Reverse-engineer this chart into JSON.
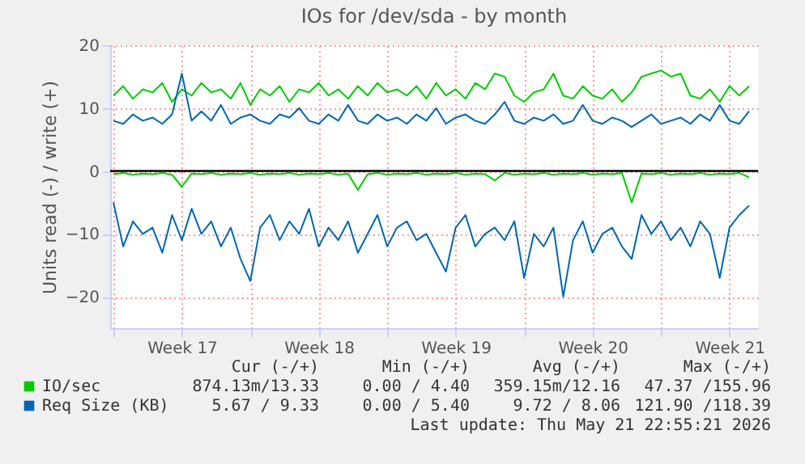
{
  "chart_data": {
    "type": "line",
    "title": "IOs for /dev/sda - by month",
    "ylabel": "Units read (-) / write (+)",
    "x": [
      "2026-04-20T00:00",
      "2026-04-20T12:00",
      "2026-04-21T00:00",
      "2026-04-21T12:00",
      "2026-04-22T00:00",
      "2026-04-22T12:00",
      "2026-04-23T00:00",
      "2026-04-23T12:00",
      "2026-04-24T00:00",
      "2026-04-24T12:00",
      "2026-04-25T00:00",
      "2026-04-25T12:00",
      "2026-04-26T00:00",
      "2026-04-26T12:00",
      "2026-04-27T00:00",
      "2026-04-27T12:00",
      "2026-04-28T00:00",
      "2026-04-28T12:00",
      "2026-04-29T00:00",
      "2026-04-29T12:00",
      "2026-04-30T00:00",
      "2026-04-30T12:00",
      "2026-05-01T00:00",
      "2026-05-01T12:00",
      "2026-05-02T00:00",
      "2026-05-02T12:00",
      "2026-05-03T00:00",
      "2026-05-03T12:00",
      "2026-05-04T00:00",
      "2026-05-04T12:00",
      "2026-05-05T00:00",
      "2026-05-05T12:00",
      "2026-05-06T00:00",
      "2026-05-06T12:00",
      "2026-05-07T00:00",
      "2026-05-07T12:00",
      "2026-05-08T00:00",
      "2026-05-08T12:00",
      "2026-05-09T00:00",
      "2026-05-09T12:00",
      "2026-05-10T00:00",
      "2026-05-10T12:00",
      "2026-05-11T00:00",
      "2026-05-11T12:00",
      "2026-05-12T00:00",
      "2026-05-12T12:00",
      "2026-05-13T00:00",
      "2026-05-13T12:00",
      "2026-05-14T00:00",
      "2026-05-14T12:00",
      "2026-05-15T00:00",
      "2026-05-15T12:00",
      "2026-05-16T00:00",
      "2026-05-16T12:00",
      "2026-05-17T00:00",
      "2026-05-17T12:00",
      "2026-05-18T00:00",
      "2026-05-18T12:00",
      "2026-05-19T00:00",
      "2026-05-19T12:00",
      "2026-05-20T00:00",
      "2026-05-20T12:00",
      "2026-05-21T00:00",
      "2026-05-21T12:00",
      "2026-05-22T00:00",
      "2026-05-22T12:00"
    ],
    "series": [
      {
        "name": "IO/sec",
        "color": "#00cc00",
        "values": [
          12,
          13.5,
          11.5,
          13,
          12.5,
          14,
          11,
          13,
          12,
          14,
          12.5,
          13,
          11.5,
          14,
          10.5,
          13,
          12,
          13.5,
          11,
          13,
          12.5,
          14,
          12,
          13,
          11.5,
          13.5,
          12,
          14,
          12.5,
          13,
          12,
          13.5,
          11.5,
          14,
          12,
          13,
          11.5,
          14,
          13,
          15.5,
          15,
          12,
          11,
          12.5,
          13,
          15.5,
          12,
          11.5,
          13.5,
          12,
          11.5,
          13,
          11,
          12.5,
          15,
          15.5,
          16,
          15,
          15.5,
          12,
          11.5,
          13,
          11,
          13.5,
          12,
          13.5
        ]
      },
      {
        "color": "#00cc00",
        "values": [
          -0.5,
          -0.3,
          -0.6,
          -0.4,
          -0.5,
          -0.3,
          -0.6,
          -2.5,
          -0.4,
          -0.5,
          -0.3,
          -0.6,
          -0.4,
          -0.5,
          -0.3,
          -0.6,
          -0.4,
          -0.5,
          -0.3,
          -0.6,
          -0.4,
          -0.5,
          -0.3,
          -0.6,
          -0.4,
          -3,
          -0.5,
          -0.3,
          -0.6,
          -0.4,
          -0.5,
          -0.3,
          -0.6,
          -0.4,
          -0.5,
          -0.3,
          -0.6,
          -0.4,
          -0.5,
          -1.5,
          -0.3,
          -0.6,
          -0.4,
          -0.5,
          -0.3,
          -0.6,
          -0.4,
          -0.5,
          -0.3,
          -0.6,
          -0.4,
          -0.5,
          -0.3,
          -5,
          -0.4,
          -0.5,
          -0.3,
          -0.6,
          -0.4,
          -0.5,
          -0.3,
          -0.6,
          -0.4,
          -0.5,
          -0.3,
          -1
        ]
      },
      {
        "name": "Req Size (KB)",
        "color": "#0066b3",
        "values": [
          8,
          7.5,
          9,
          8,
          8.5,
          7.5,
          9,
          15.5,
          8,
          9.5,
          8,
          10.5,
          7.5,
          8.5,
          9,
          8,
          7.5,
          9,
          8.5,
          10,
          8,
          7.5,
          9,
          8,
          10.5,
          8,
          7.5,
          9,
          8,
          8.5,
          7.5,
          9,
          8,
          10,
          7.5,
          8.5,
          9,
          8,
          7.5,
          9,
          11,
          8,
          7.5,
          8.5,
          8,
          9,
          7.5,
          8,
          10.5,
          8,
          7.5,
          8.5,
          8,
          7,
          8,
          9,
          7.5,
          8,
          8.5,
          7.5,
          9,
          8,
          10.5,
          8,
          7.5,
          9.5
        ]
      },
      {
        "color": "#0066b3",
        "values": [
          -5,
          -12,
          -8,
          -10,
          -9,
          -13,
          -7,
          -11,
          -6,
          -10,
          -8,
          -12,
          -9,
          -14,
          -17.5,
          -9,
          -7,
          -11,
          -8,
          -10,
          -6,
          -12,
          -9,
          -11,
          -8,
          -13,
          -10,
          -7,
          -12,
          -9,
          -8,
          -11,
          -10,
          -13,
          -16,
          -9,
          -7,
          -12,
          -10,
          -9,
          -11,
          -8,
          -17,
          -10,
          -12,
          -9,
          -20,
          -11,
          -8,
          -13,
          -10,
          -9,
          -12,
          -14,
          -7,
          -10,
          -8,
          -11,
          -9,
          -12,
          -8,
          -10,
          -17,
          -9,
          -7,
          -5.5
        ]
      }
    ],
    "xlim": [
      "2026-04-19T20:00",
      "2026-05-22T23:00"
    ],
    "xticks": [
      {
        "value": "2026-04-20T00:00",
        "label": null
      },
      {
        "value": "2026-04-23T12:00",
        "label": "Week 17"
      },
      {
        "value": "2026-04-27T00:00",
        "label": null
      },
      {
        "value": "2026-04-30T12:00",
        "label": "Week 18"
      },
      {
        "value": "2026-05-04T00:00",
        "label": null
      },
      {
        "value": "2026-05-07T12:00",
        "label": "Week 19"
      },
      {
        "value": "2026-05-11T00:00",
        "label": null
      },
      {
        "value": "2026-05-14T12:00",
        "label": "Week 20"
      },
      {
        "value": "2026-05-18T00:00",
        "label": null
      },
      {
        "value": "2026-05-21T12:00",
        "label": "Week 21"
      }
    ],
    "ylim": [
      -25,
      20
    ],
    "yticks": [
      -20,
      -10,
      0,
      10,
      20
    ],
    "ref_lines": [
      {
        "axis": "y",
        "value": 0,
        "color": "#000000"
      }
    ],
    "grid": true,
    "legend": "bottom",
    "annotations": [
      "Cur (-/+)",
      "Min (-/+)",
      "Avg (-/+)",
      "Max (-/+)",
      "874.13m/13.33",
      "0.00 / 4.40",
      "359.15m/12.16",
      "47.37 /155.96",
      "5.67 / 9.33",
      "0.00 / 5.40",
      "9.72 / 8.06",
      "121.90 /118.39",
      "Last update: Thu May 21 22:55:21 2026"
    ]
  }
}
